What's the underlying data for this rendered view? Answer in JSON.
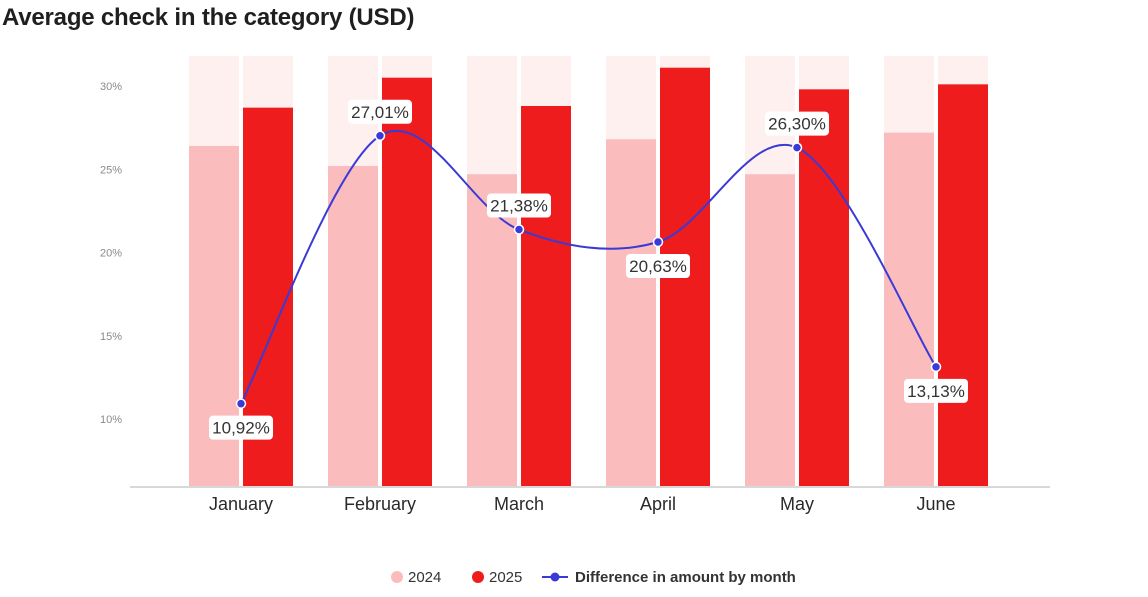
{
  "title": "Average check in the category (USD)",
  "colors": {
    "bar_2024": "#fabcbc",
    "bar_2025": "#ee1c1c",
    "bar_background": "#fff0f0",
    "line": "#3a3ad6",
    "axis": "#cccccc"
  },
  "chart_data": {
    "type": "bar",
    "title": "Average check in the category (USD)",
    "categories": [
      "January",
      "February",
      "March",
      "April",
      "May",
      "June"
    ],
    "ylim": [
      5,
      32
    ],
    "yticks": [
      10,
      15,
      20,
      25,
      30
    ],
    "ytick_labels": [
      "10%",
      "15%",
      "20%",
      "25%",
      "30%"
    ],
    "grid": false,
    "legend_position": "bottom-center",
    "series": [
      {
        "name": "2024",
        "type": "bar",
        "values": [
          26.4,
          25.2,
          24.7,
          26.8,
          24.7,
          27.2
        ]
      },
      {
        "name": "2025",
        "type": "bar",
        "values": [
          28.7,
          30.5,
          28.8,
          31.1,
          29.8,
          30.1
        ]
      },
      {
        "name": "Difference in amount by month",
        "type": "line",
        "values": [
          10.92,
          27.01,
          21.38,
          20.63,
          26.3,
          13.13
        ],
        "labels": [
          "10,92%",
          "27,01%",
          "21,38%",
          "20,63%",
          "26,30%",
          "13,13%"
        ]
      }
    ]
  }
}
